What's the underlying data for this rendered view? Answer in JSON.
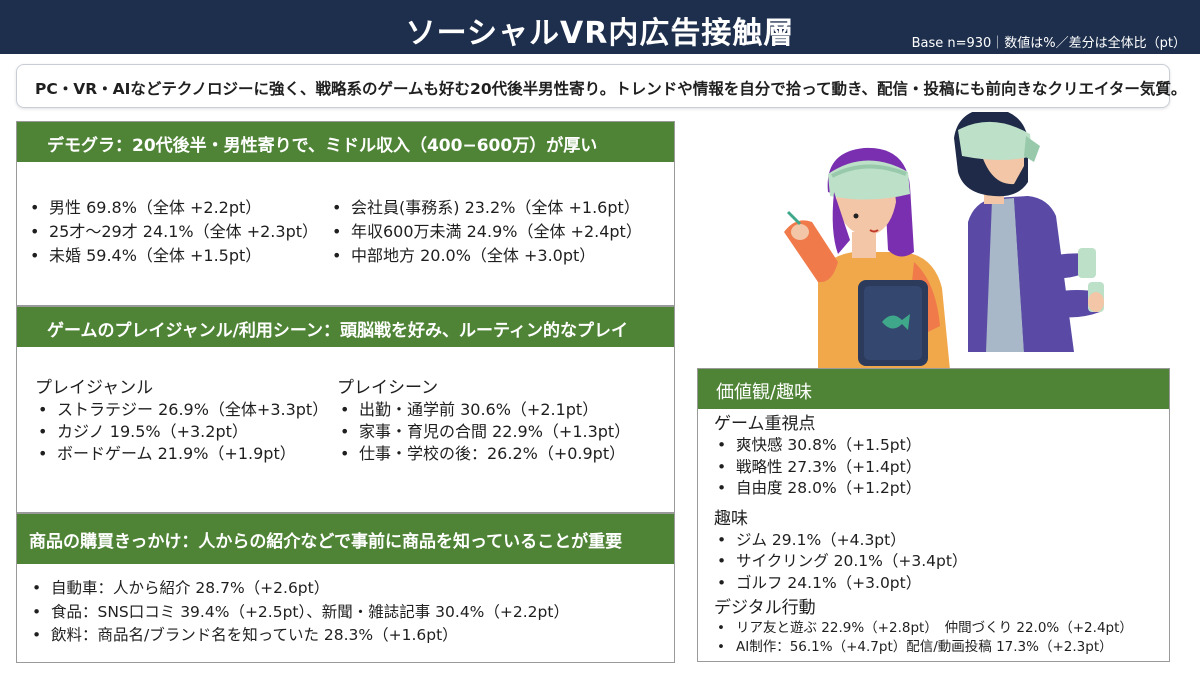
{
  "header": {
    "title": "ソーシャルVR内広告接触層",
    "base_note": "Base n=930｜数値は%／差分は全体比（pt）"
  },
  "summary": "PC・VR・AIなどテクノロジーに強く、戦略系のゲームも好む20代後半男性寄り。トレンドや情報を自分で拾って動き、配信・投稿にも前向きなクリエイター気質。",
  "demographics": {
    "heading": "デモグラ：20代後半・男性寄りで、ミドル収入（400−600万）が厚い",
    "left": [
      "男性 69.8%（全体 +2.2pt）",
      "25才〜29才 24.1%（全体 +2.3pt）",
      "未婚 59.4%（全体 +1.5pt）"
    ],
    "right": [
      "会社員(事務系) 23.2%（全体 +1.6pt）",
      " 年収600万未満 24.9%（全体 +2.4pt）",
      "中部地方 20.0%（全体 +3.0pt）"
    ]
  },
  "game": {
    "heading": "ゲームのプレイジャンル/利用シーン：頭脳戦を好み、ルーティン的なプレイ",
    "genre_title": "プレイジャンル",
    "genres": [
      "ストラテジー 26.9%（全体+3.3pt）",
      "カジノ 19.5%（+3.2pt）",
      "ボードゲーム 21.9%（+1.9pt）"
    ],
    "scene_title": "プレイシーン",
    "scenes": [
      "出勤・通学前 30.6%（+2.1pt）",
      "家事・育児の合間 22.9%（+1.3pt）",
      "仕事・学校の後：26.2%（+0.9pt）"
    ]
  },
  "purchase": {
    "heading": "商品の購買きっかけ：人からの紹介などで事前に商品を知っていることが重要",
    "items": [
      "自動車：人から紹介 28.7%（+2.6pt）",
      "食品：SNS口コミ 39.4%（+2.5pt）、新聞・雑誌記事 30.4%（+2.2pt）",
      "飲料：商品名/ブランド名を知っていた 28.3%（+1.6pt）"
    ]
  },
  "values": {
    "heading": "価値観/趣味",
    "game_title": "ゲーム重視点",
    "game_items": [
      "爽快感 30.8%（+1.5pt）",
      "戦略性 27.3%（+1.4pt）",
      "自由度 28.0%（+1.2pt）"
    ],
    "hobby_title": "趣味",
    "hobby_items": [
      "ジム 29.1%（+4.3pt）",
      "サイクリング 20.1%（+3.4pt）",
      "ゴルフ 24.1%（+3.0pt）"
    ],
    "digital_title": "デジタル行動",
    "digital_items": [
      "リア友と遊ぶ 22.9%（+2.8pt）　仲間づくり 22.0%（+2.4pt）",
      "AI制作：56.1%（+4.7pt）配信/動画投稿 17.3%（+2.3pt）"
    ]
  },
  "colors": {
    "header_bg": "#1e2f4d",
    "section_green": "#4f8436"
  },
  "illustration": "two-people-vr-headsets"
}
